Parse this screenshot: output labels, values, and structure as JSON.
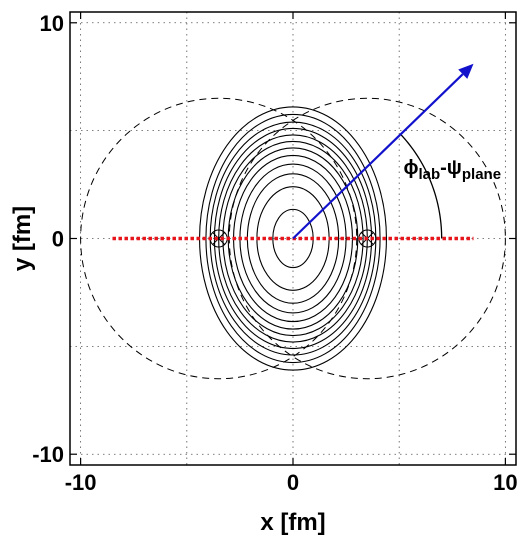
{
  "figure": {
    "xlabel": "x [fm]",
    "ylabel": "y [fm]",
    "xlim": [
      -10.5,
      10.5
    ],
    "ylim": [
      -10.5,
      10.5
    ],
    "x_ticks": [
      -10,
      0,
      10
    ],
    "y_ticks": [
      -10,
      0,
      10
    ],
    "x_tick_labels": [
      "-10",
      "0",
      "10"
    ],
    "y_tick_labels": [
      "-10",
      "0",
      "10"
    ],
    "grid_lines": [
      -10,
      -5,
      0,
      5,
      10
    ],
    "grid": true,
    "colors": {
      "contour": "#000000",
      "nucleus_outline": "#000000",
      "reaction_plane": "#e8141c",
      "direction_arrow": "#1212cc"
    },
    "nuclei": [
      {
        "center_x": -3.5,
        "center_y": 0,
        "radius": 6.5
      },
      {
        "center_x": 3.5,
        "center_y": 0,
        "radius": 6.5
      }
    ],
    "participant_centers": [
      {
        "x": -3.5,
        "y": 0
      },
      {
        "x": 3.5,
        "y": 0
      }
    ],
    "contour_levels": [
      {
        "a": 0.95,
        "b": 1.35
      },
      {
        "a": 1.7,
        "b": 2.4
      },
      {
        "a": 2.15,
        "b": 3.0
      },
      {
        "a": 2.5,
        "b": 3.45
      },
      {
        "a": 2.8,
        "b": 3.85
      },
      {
        "a": 3.05,
        "b": 4.2
      },
      {
        "a": 3.3,
        "b": 4.5
      },
      {
        "a": 3.5,
        "b": 4.8
      },
      {
        "a": 3.7,
        "b": 5.1
      },
      {
        "a": 3.9,
        "b": 5.4
      },
      {
        "a": 4.1,
        "b": 5.75
      },
      {
        "a": 4.4,
        "b": 6.1
      }
    ],
    "reaction_plane_line": {
      "x_start": -8.5,
      "x_end": 8.5,
      "y": 0
    },
    "direction_arrow": {
      "x_start": 0,
      "y_start": 0,
      "x_end": 8.5,
      "y_end": 8.1
    },
    "angle_arc": {
      "radius": 7.0
    },
    "angle_label": {
      "phi": "ϕ",
      "phi_sub": "lab",
      "dash": "-",
      "psi": "ψ",
      "psi_sub": "plane",
      "anchor_x": 5.2,
      "anchor_y": 3.0
    }
  }
}
